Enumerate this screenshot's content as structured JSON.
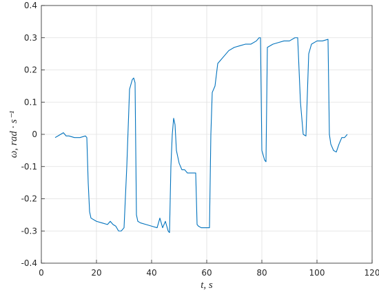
{
  "chart_data": {
    "type": "line",
    "xlabel": "t, s",
    "ylabel": "ω, rad · s⁻¹",
    "color": "#0072bd",
    "grid": true,
    "xlim": [
      0,
      120
    ],
    "ylim": [
      -0.4,
      0.4
    ],
    "xticks": [
      0,
      20,
      40,
      60,
      80,
      100,
      120
    ],
    "yticks": [
      -0.4,
      -0.3,
      -0.2,
      -0.1,
      0,
      0.1,
      0.2,
      0.3,
      0.4
    ],
    "x": [
      5,
      6,
      7,
      8,
      9,
      10,
      12,
      14,
      16,
      16.5,
      17,
      17.5,
      18,
      20,
      22,
      24,
      25,
      26,
      27,
      28,
      29,
      30,
      31,
      32,
      33,
      33.5,
      34,
      34.5,
      35,
      36,
      38,
      40,
      42,
      43,
      44,
      45,
      46,
      46.5,
      47,
      47.5,
      48,
      48.5,
      49,
      50,
      51,
      52,
      53,
      55,
      56,
      56.5,
      57,
      58,
      60,
      61,
      61.5,
      62,
      63,
      64,
      65,
      66,
      68,
      70,
      72,
      74,
      76,
      78,
      79,
      79.5,
      80,
      81,
      81.5,
      82,
      84,
      86,
      88,
      90,
      92,
      93,
      94,
      95,
      96,
      97,
      98,
      100,
      102,
      104,
      104.5,
      105,
      106,
      107,
      108,
      109,
      110,
      111
    ],
    "values": [
      -0.01,
      -0.005,
      0.0,
      0.005,
      -0.005,
      -0.005,
      -0.01,
      -0.01,
      -0.005,
      -0.01,
      -0.15,
      -0.24,
      -0.26,
      -0.27,
      -0.275,
      -0.28,
      -0.27,
      -0.28,
      -0.285,
      -0.3,
      -0.3,
      -0.29,
      -0.1,
      0.14,
      0.17,
      0.175,
      0.16,
      -0.25,
      -0.27,
      -0.275,
      -0.28,
      -0.285,
      -0.29,
      -0.26,
      -0.29,
      -0.27,
      -0.3,
      -0.305,
      -0.1,
      0.0,
      0.05,
      0.03,
      -0.05,
      -0.09,
      -0.11,
      -0.11,
      -0.12,
      -0.12,
      -0.12,
      -0.28,
      -0.285,
      -0.29,
      -0.29,
      -0.29,
      0.0,
      0.13,
      0.15,
      0.22,
      0.23,
      0.24,
      0.26,
      0.27,
      0.275,
      0.28,
      0.28,
      0.29,
      0.3,
      0.3,
      -0.05,
      -0.08,
      -0.085,
      0.27,
      0.28,
      0.285,
      0.29,
      0.29,
      0.3,
      0.3,
      0.1,
      0.0,
      -0.005,
      0.25,
      0.28,
      0.29,
      0.29,
      0.295,
      0.0,
      -0.03,
      -0.05,
      -0.055,
      -0.03,
      -0.01,
      -0.01,
      0.0
    ]
  }
}
